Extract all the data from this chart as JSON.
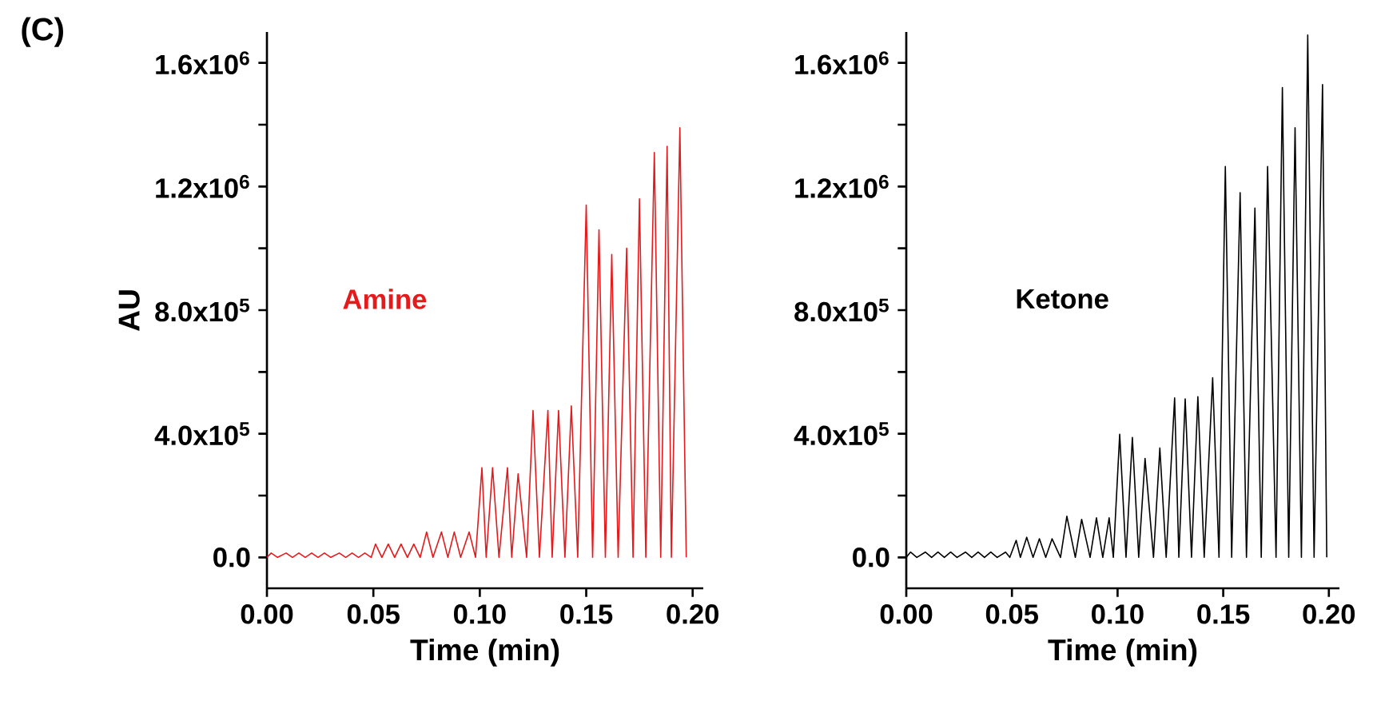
{
  "chart_data": [
    {
      "type": "line",
      "annotations": [
        "(C)"
      ],
      "xlabel": "Time (min)",
      "ylabel": "AU",
      "grid": false,
      "xlim": [
        0,
        0.205
      ],
      "ylim": [
        -100000,
        1700000
      ],
      "xticks": [
        {
          "value": 0,
          "label": "0.00"
        },
        {
          "value": 0.05,
          "label": "0.05"
        },
        {
          "value": 0.1,
          "label": "0.10"
        },
        {
          "value": 0.15,
          "label": "0.15"
        },
        {
          "value": 0.2,
          "label": "0.20"
        }
      ],
      "yticks": [
        {
          "value": 0,
          "label": "0.0"
        },
        {
          "value": 200000,
          "label": null
        },
        {
          "value": 400000,
          "label": "4.0x10$^{5}$"
        },
        {
          "value": 600000,
          "label": null
        },
        {
          "value": 800000,
          "label": "8.0x10$^{5}$"
        },
        {
          "value": 1000000,
          "label": null
        },
        {
          "value": 1200000,
          "label": "1.2x10$^{6}$"
        },
        {
          "value": 1400000,
          "label": null
        },
        {
          "value": 1600000,
          "label": "1.6x10$^{6}$"
        }
      ],
      "series": [
        {
          "name": "Amine",
          "color": "#e41a1c",
          "x": [
            0.0,
            0.002,
            0.005,
            0.009,
            0.012,
            0.015,
            0.018,
            0.021,
            0.024,
            0.027,
            0.03,
            0.034,
            0.037,
            0.04,
            0.043,
            0.046,
            0.049,
            0.051,
            0.054,
            0.057,
            0.06,
            0.063,
            0.066,
            0.069,
            0.072,
            0.075,
            0.078,
            0.082,
            0.085,
            0.088,
            0.091,
            0.095,
            0.098,
            0.101,
            0.103,
            0.106,
            0.109,
            0.113,
            0.115,
            0.118,
            0.122,
            0.125,
            0.128,
            0.132,
            0.134,
            0.137,
            0.14,
            0.143,
            0.146,
            0.15,
            0.153,
            0.156,
            0.159,
            0.162,
            0.165,
            0.169,
            0.172,
            0.175,
            0.178,
            0.182,
            0.185,
            0.188,
            0.19,
            0.194,
            0.197
          ],
          "values": [
            0,
            14000,
            0,
            14000,
            0,
            14000,
            0,
            14000,
            0,
            14000,
            0,
            14000,
            0,
            14000,
            0,
            14000,
            0,
            43000,
            0,
            43000,
            0,
            43000,
            0,
            43000,
            0,
            82000,
            0,
            82000,
            0,
            82000,
            0,
            82000,
            0,
            290000,
            0,
            290000,
            0,
            290000,
            0,
            270000,
            0,
            475000,
            0,
            475000,
            0,
            475000,
            0,
            490000,
            0,
            1140000,
            0,
            1060000,
            0,
            980000,
            0,
            1000000,
            0,
            1160000,
            0,
            1310000,
            0,
            1330000,
            0,
            1390000,
            0
          ]
        }
      ]
    },
    {
      "type": "line",
      "xlabel": "Time (min)",
      "grid": false,
      "xlim": [
        0,
        0.205
      ],
      "ylim": [
        -100000,
        1700000
      ],
      "xticks": [
        {
          "value": 0,
          "label": "0.00"
        },
        {
          "value": 0.05,
          "label": "0.05"
        },
        {
          "value": 0.1,
          "label": "0.10"
        },
        {
          "value": 0.15,
          "label": "0.15"
        },
        {
          "value": 0.2,
          "label": "0.20"
        }
      ],
      "yticks": [
        {
          "value": 0,
          "label": "0.0"
        },
        {
          "value": 200000,
          "label": null
        },
        {
          "value": 400000,
          "label": "4.0x10$^{5}$"
        },
        {
          "value": 600000,
          "label": null
        },
        {
          "value": 800000,
          "label": "8.0x10$^{5}$"
        },
        {
          "value": 1000000,
          "label": null
        },
        {
          "value": 1200000,
          "label": "1.2x10$^{6}$"
        },
        {
          "value": 1400000,
          "label": null
        },
        {
          "value": 1600000,
          "label": "1.6x10$^{6}$"
        }
      ],
      "series": [
        {
          "name": "Ketone",
          "color": "#000000",
          "x": [
            0.0,
            0.002,
            0.005,
            0.009,
            0.012,
            0.015,
            0.018,
            0.021,
            0.024,
            0.028,
            0.031,
            0.034,
            0.037,
            0.04,
            0.043,
            0.047,
            0.049,
            0.052,
            0.054,
            0.057,
            0.06,
            0.063,
            0.066,
            0.069,
            0.073,
            0.076,
            0.08,
            0.083,
            0.087,
            0.09,
            0.093,
            0.096,
            0.098,
            0.101,
            0.104,
            0.107,
            0.11,
            0.113,
            0.117,
            0.12,
            0.123,
            0.127,
            0.129,
            0.132,
            0.135,
            0.138,
            0.141,
            0.145,
            0.148,
            0.151,
            0.154,
            0.158,
            0.161,
            0.165,
            0.168,
            0.171,
            0.175,
            0.178,
            0.181,
            0.184,
            0.187,
            0.19,
            0.193,
            0.197,
            0.199
          ],
          "values": [
            0,
            17000,
            0,
            17000,
            0,
            17000,
            0,
            17000,
            0,
            17000,
            0,
            17000,
            0,
            17000,
            0,
            17000,
            0,
            55000,
            0,
            65000,
            0,
            60000,
            0,
            60000,
            0,
            133000,
            0,
            123000,
            0,
            128000,
            0,
            128000,
            0,
            398000,
            0,
            388000,
            0,
            320000,
            0,
            354000,
            0,
            516000,
            0,
            513000,
            0,
            520000,
            0,
            581000,
            0,
            1265000,
            0,
            1180000,
            0,
            1130000,
            0,
            1265000,
            0,
            1520000,
            0,
            1390000,
            0,
            1690000,
            0,
            1530000,
            0
          ]
        }
      ]
    }
  ]
}
